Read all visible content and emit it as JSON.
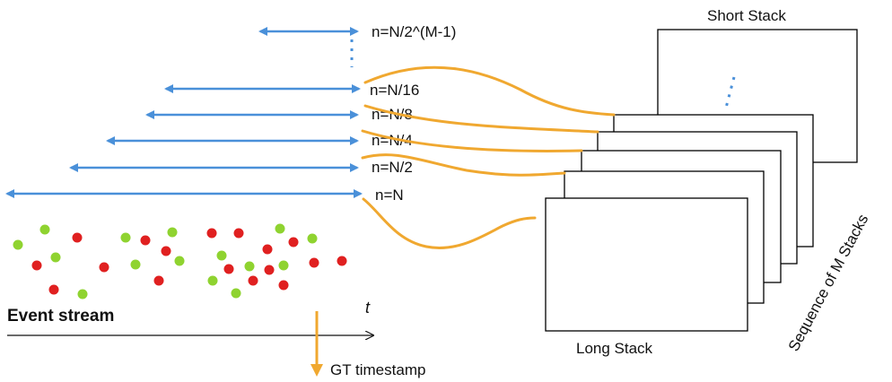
{
  "colors": {
    "arrow": "#4a90d9",
    "curve": "#f0a830",
    "event_red": "#e02020",
    "event_green": "#8fd330",
    "stack_border": "#000000"
  },
  "window_labels": [
    "n=N/2^(M-1)",
    "n=N/16",
    "n=N/8",
    "n=N/4",
    "n=N/2",
    "n=N"
  ],
  "stack_labels": {
    "short": "Short Stack",
    "long": "Long Stack",
    "sequence": "Sequence of M Stacks"
  },
  "event_stream_label": "Event stream",
  "time_axis_label": "t",
  "gt_timestamp_label": "GT timestamp"
}
